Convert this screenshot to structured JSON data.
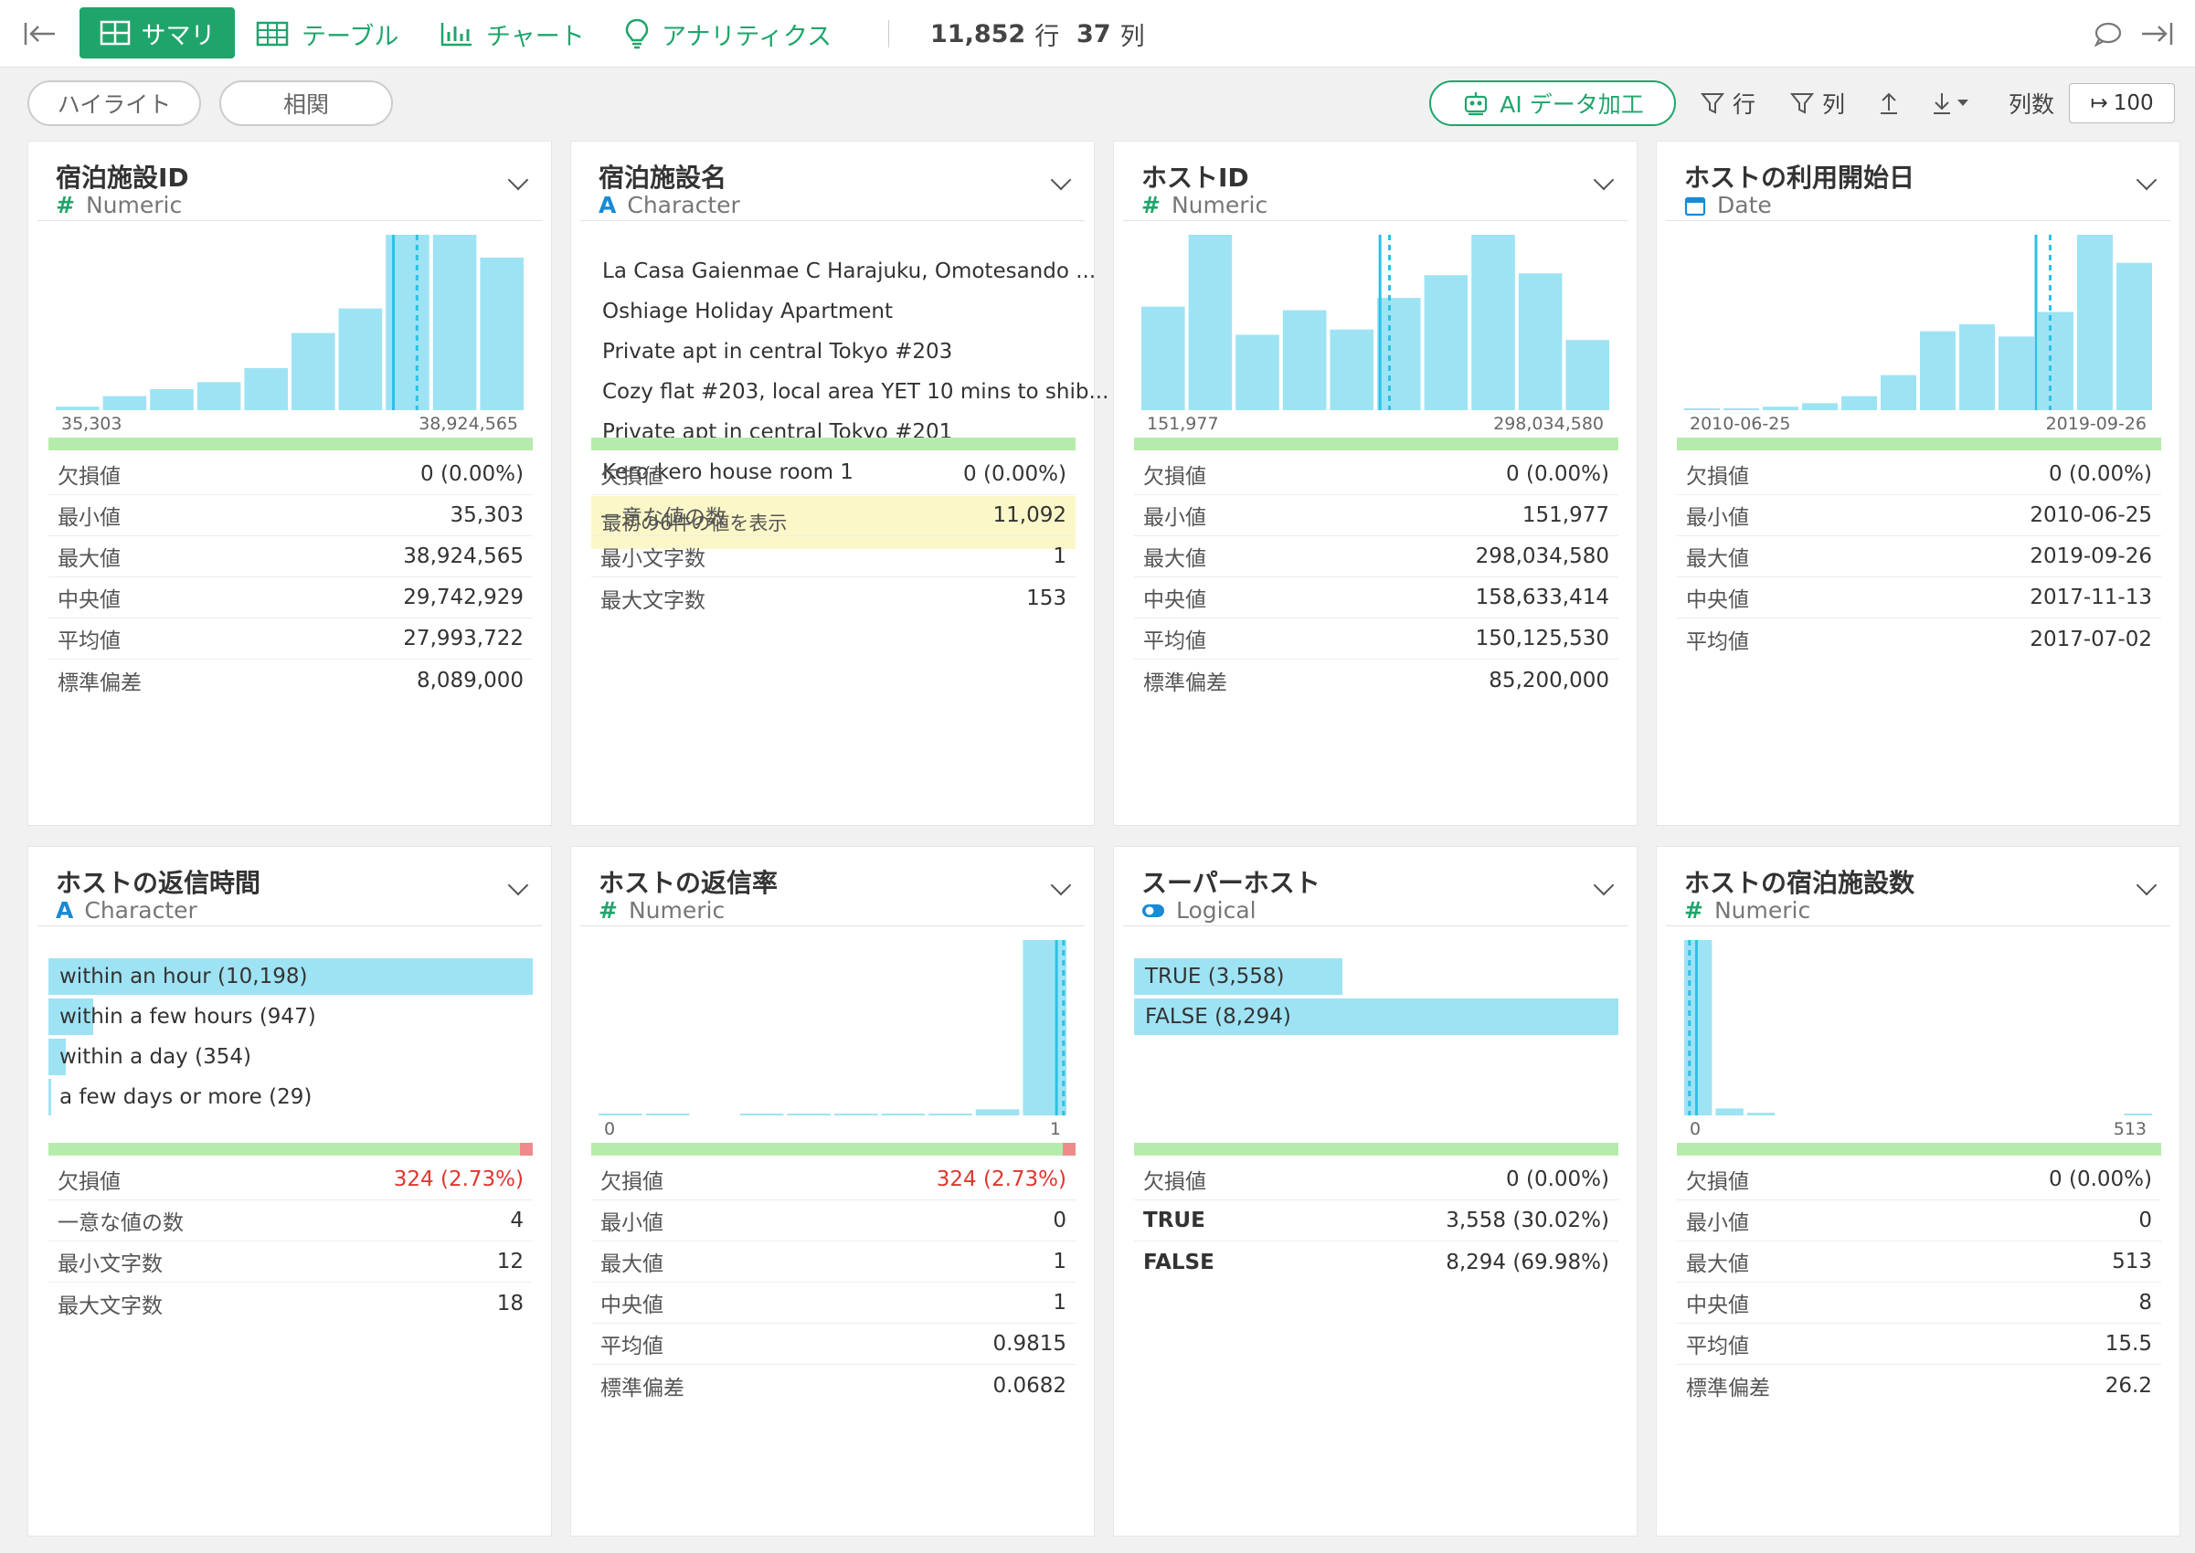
{
  "toolbar": {
    "summary": "サマリ",
    "table": "テーブル",
    "chart": "チャート",
    "analytics": "アナリティクス",
    "rows_count": "11,852",
    "rows_unit": "行",
    "cols_count": "37",
    "cols_unit": "列"
  },
  "subbar": {
    "highlight": "ハイライト",
    "correlation": "相関",
    "ai_label": "AI データ加工",
    "filter_rows": "行",
    "filter_cols": "列",
    "col_count_label": "列数",
    "col_count_value": "100"
  },
  "cards": [
    {
      "title": "宿泊施設ID",
      "type": "Numeric",
      "type_icon": "#",
      "kind": "hist",
      "axis_min": "35,303",
      "axis_max": "38,924,565",
      "hist": [
        0.02,
        0.08,
        0.12,
        0.16,
        0.24,
        0.44,
        0.58,
        1.0,
        1.0,
        0.87
      ],
      "median_pos": 0.77,
      "mean_pos": 0.72,
      "missing_pct": 0,
      "stats": [
        {
          "k": "欠損値",
          "v": "0 (0.00%)"
        },
        {
          "k": "最小値",
          "v": "35,303"
        },
        {
          "k": "最大値",
          "v": "38,924,565"
        },
        {
          "k": "中央値",
          "v": "29,742,929"
        },
        {
          "k": "平均値",
          "v": "27,993,722"
        },
        {
          "k": "標準偏差",
          "v": "8,089,000"
        }
      ]
    },
    {
      "title": "宿泊施設名",
      "type": "Character",
      "type_icon": "A",
      "kind": "list",
      "items": [
        "La Casa Gaienmae C Harajuku, Omotesando ...",
        "Oshiage Holiday Apartment",
        "Private apt in central Tokyo #203",
        "Cozy flat #203, local area YET 10 mins to shib...",
        "Private apt in central Tokyo #201",
        "Kero-kero house room 1"
      ],
      "note": "最初の6件の値を表示",
      "missing_pct": 0,
      "stats": [
        {
          "k": "欠損値",
          "v": "0 (0.00%)"
        },
        {
          "k": "一意な値の数",
          "v": "11,092"
        },
        {
          "k": "最小文字数",
          "v": "1"
        },
        {
          "k": "最大文字数",
          "v": "153"
        }
      ]
    },
    {
      "title": "ホストID",
      "type": "Numeric",
      "type_icon": "#",
      "kind": "hist",
      "axis_min": "151,977",
      "axis_max": "298,034,580",
      "hist": [
        0.59,
        1.0,
        0.43,
        0.57,
        0.46,
        0.64,
        0.77,
        1.0,
        0.78,
        0.4
      ],
      "median_pos": 0.53,
      "mean_pos": 0.51,
      "missing_pct": 0,
      "stats": [
        {
          "k": "欠損値",
          "v": "0 (0.00%)"
        },
        {
          "k": "最小値",
          "v": "151,977"
        },
        {
          "k": "最大値",
          "v": "298,034,580"
        },
        {
          "k": "中央値",
          "v": "158,633,414"
        },
        {
          "k": "平均値",
          "v": "150,125,530"
        },
        {
          "k": "標準偏差",
          "v": "85,200,000"
        }
      ]
    },
    {
      "title": "ホストの利用開始日",
      "type": "Date",
      "type_icon": "cal",
      "kind": "hist",
      "axis_min": "2010-06-25",
      "axis_max": "2019-09-26",
      "hist": [
        0.005,
        0.01,
        0.02,
        0.04,
        0.08,
        0.2,
        0.45,
        0.49,
        0.42,
        0.56,
        1.0,
        0.84
      ],
      "median_pos": 0.78,
      "mean_pos": 0.75,
      "missing_pct": 0,
      "stats": [
        {
          "k": "欠損値",
          "v": "0 (0.00%)"
        },
        {
          "k": "最小値",
          "v": "2010-06-25"
        },
        {
          "k": "最大値",
          "v": "2019-09-26"
        },
        {
          "k": "中央値",
          "v": "2017-11-13"
        },
        {
          "k": "平均値",
          "v": "2017-07-02"
        }
      ]
    },
    {
      "title": "ホストの返信時間",
      "type": "Character",
      "type_icon": "A",
      "kind": "cat",
      "cats": [
        {
          "label": "within an hour (10,198)",
          "frac": 1.0
        },
        {
          "label": "within a few hours (947)",
          "frac": 0.093
        },
        {
          "label": "within a day (354)",
          "frac": 0.035
        },
        {
          "label": "a few days or more (29)",
          "frac": 0.004
        }
      ],
      "missing_pct": 2.73,
      "stats": [
        {
          "k": "欠損値",
          "v": "324 (2.73%)",
          "red": true
        },
        {
          "k": "一意な値の数",
          "v": "4"
        },
        {
          "k": "最小文字数",
          "v": "12"
        },
        {
          "k": "最大文字数",
          "v": "18"
        }
      ]
    },
    {
      "title": "ホストの返信率",
      "type": "Numeric",
      "type_icon": "#",
      "kind": "hist",
      "axis_min": "0",
      "axis_max": "1",
      "hist": [
        0.005,
        0.005,
        0,
        0.005,
        0.005,
        0.005,
        0.005,
        0.01,
        0.035,
        1.0
      ],
      "median_pos": 0.99,
      "mean_pos": 0.975,
      "missing_pct": 2.73,
      "stats": [
        {
          "k": "欠損値",
          "v": "324 (2.73%)",
          "red": true
        },
        {
          "k": "最小値",
          "v": "0"
        },
        {
          "k": "最大値",
          "v": "1"
        },
        {
          "k": "中央値",
          "v": "1"
        },
        {
          "k": "平均値",
          "v": "0.9815"
        },
        {
          "k": "標準偏差",
          "v": "0.0682"
        }
      ]
    },
    {
      "title": "スーパーホスト",
      "type": "Logical",
      "type_icon": "toggle",
      "kind": "cat",
      "cats": [
        {
          "label": "TRUE (3,558)",
          "frac": 0.43
        },
        {
          "label": "FALSE (8,294)",
          "frac": 1.0
        }
      ],
      "missing_pct": 0,
      "stats": [
        {
          "k": "欠損値",
          "v": "0 (0.00%)"
        },
        {
          "k": "TRUE",
          "v": "3,558 (30.02%)",
          "bold": true
        },
        {
          "k": "FALSE",
          "v": "8,294 (69.98%)",
          "bold": true
        }
      ]
    },
    {
      "title": "ホストの宿泊施設数",
      "type": "Numeric",
      "type_icon": "#",
      "kind": "hist",
      "axis_min": "0",
      "axis_max": "513",
      "hist": [
        1.0,
        0.04,
        0.015,
        0,
        0,
        0,
        0,
        0,
        0,
        0,
        0,
        0,
        0,
        0,
        0.005
      ],
      "median_pos": 0.015,
      "mean_pos": 0.03,
      "missing_pct": 0,
      "stats": [
        {
          "k": "欠損値",
          "v": "0 (0.00%)"
        },
        {
          "k": "最小値",
          "v": "0"
        },
        {
          "k": "最大値",
          "v": "513"
        },
        {
          "k": "中央値",
          "v": "8"
        },
        {
          "k": "平均値",
          "v": "15.5"
        },
        {
          "k": "標準偏差",
          "v": "26.2"
        }
      ]
    }
  ]
}
